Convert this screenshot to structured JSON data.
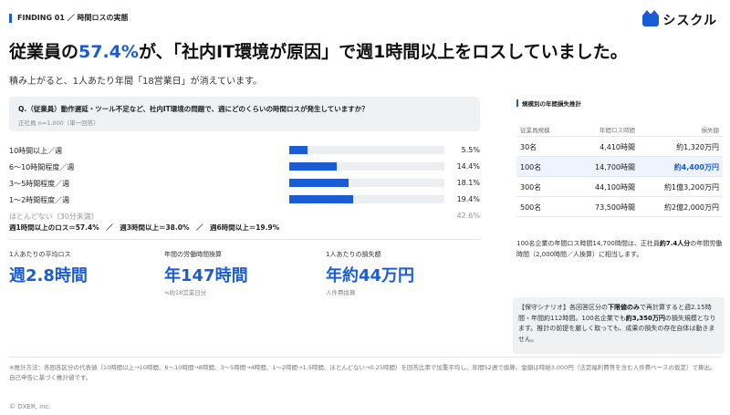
{
  "header": {
    "tag": "FINDING 01 ／ 時間ロスの実態"
  },
  "logo": {
    "text": "シスクル",
    "icon": "cat-logo-icon"
  },
  "headline": {
    "part1": "従業員の",
    "highlight": "57.4%",
    "part2": "が、「社内IT環境が原因」で週1時間以上をロスしていました。"
  },
  "subheadline": "積み上がると、1人あたり年間「18営業日」が消えています。",
  "question": {
    "text": "Q.（従業員）動作遅延・ツール不足など、社内IT環境の問題で、週にどのくらいの時間ロスが発生していますか？",
    "note": "正社員 n=1,000（単一回答）"
  },
  "chart_data": {
    "type": "bar",
    "orientation": "horizontal",
    "categories": [
      "10時間以上／週",
      "6〜10時間程度／週",
      "3〜5時間程度／週",
      "1〜2時間程度／週",
      "ほとんどない（30分未満）"
    ],
    "values": [
      5.5,
      14.4,
      18.1,
      19.4,
      42.6
    ],
    "value_labels": [
      "5.5%",
      "14.4%",
      "18.1%",
      "19.4%",
      "42.6%"
    ],
    "xlim": [
      0,
      100
    ],
    "unit": "%",
    "bar_color": "#1a5cd6"
  },
  "cumulative": {
    "a": "週1時間以上のロス＝57.4%",
    "sep": "／",
    "b": "週3時間以上＝38.0%",
    "c": "週6時間以上＝19.9%"
  },
  "kpis": [
    {
      "label": "1人あたりの平均ロス",
      "value": "週2.8時間",
      "note": ""
    },
    {
      "label": "年間の労働時間換算",
      "value": "年147時間",
      "note": "≒約18営業日分"
    },
    {
      "label": "1人あたりの損失額",
      "value": "年約44万円",
      "note": "人件費換算"
    }
  ],
  "right_panel": {
    "title": "規模別の年間損失推計",
    "columns": [
      "従業員規模",
      "年間ロス時間",
      "損失額"
    ],
    "rows": [
      [
        "30名",
        "4,410時間",
        "約1,320万円"
      ],
      [
        "100名",
        "14,700時間",
        "約4,400万円"
      ],
      [
        "300名",
        "44,100時間",
        "約1億3,200万円"
      ],
      [
        "500名",
        "73,500時間",
        "約2億2,000万円"
      ]
    ],
    "note_part1": "100名企業の年間ロス時間14,700時間は、正社員",
    "note_bold": "約7.4人分",
    "note_part2": "の年間労働時間（2,000時間／人換算）に相当します。",
    "scenario_part1": "【保守シナリオ】各回答区分の",
    "scenario_bold1": "下限値のみ",
    "scenario_part2": "で再計算すると週2.15時間・年間約112時間。100名企業でも",
    "scenario_bold2": "約3,350万円",
    "scenario_part3": "の損失規模となります。推計の前提を厳しく取っても、成果の損失の存在自体は動きません。"
  },
  "footnote": "※推計方法：各回答区分の代表値（10時間以上→10時間、6〜10時間→8時間、3〜5時間→4時間、1〜2時間→1.5時間、ほとんどない→0.25時間）を回答比率で加重平均し、年間52週で換算。金額は時給3,000円（法定福利費等を含む人件費ベースの仮定）で算出。自己申告に基づく推計値です。",
  "copyright": "© DXER, inc."
}
